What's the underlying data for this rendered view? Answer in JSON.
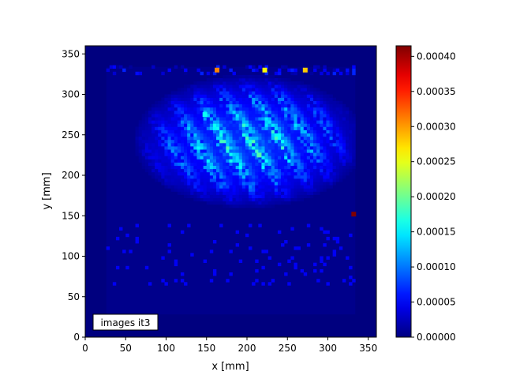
{
  "chart_data": {
    "type": "heatmap",
    "xlabel": "x [mm]",
    "ylabel": "y [mm]",
    "xlim": [
      0,
      360
    ],
    "ylim": [
      0,
      360
    ],
    "xticks": [
      0,
      50,
      100,
      150,
      200,
      250,
      300,
      350
    ],
    "yticks": [
      0,
      50,
      100,
      150,
      200,
      250,
      300,
      350
    ],
    "colormap": "jet",
    "colorbar": {
      "min": 0,
      "max": 0.000415,
      "ticks": [
        0.0,
        5e-05,
        0.0001,
        0.00015,
        0.0002,
        0.00025,
        0.0003,
        0.00035,
        0.0004
      ],
      "tick_labels": [
        "0.00000",
        "0.00005",
        "0.00010",
        "0.00015",
        "0.00020",
        "0.00025",
        "0.00030",
        "0.00035",
        "0.00040"
      ]
    },
    "annotation": "images it3",
    "domain_box": {
      "x": [
        26,
        334
      ],
      "y": [
        28,
        334
      ]
    },
    "background_value": 2e-06,
    "inner_value": 8e-06,
    "hotspots": [
      {
        "x": 332,
        "y": 152,
        "value": 0.000415
      },
      {
        "x": 163,
        "y": 330,
        "value": 0.00031
      },
      {
        "x": 222,
        "y": 330,
        "value": 0.00026
      },
      {
        "x": 272,
        "y": 330,
        "value": 0.00028
      },
      {
        "x": 215,
        "y": 225,
        "value": 0.00019
      },
      {
        "x": 148,
        "y": 275,
        "value": 0.00016
      }
    ]
  },
  "colors": {
    "background_value_color": "#00007f"
  }
}
